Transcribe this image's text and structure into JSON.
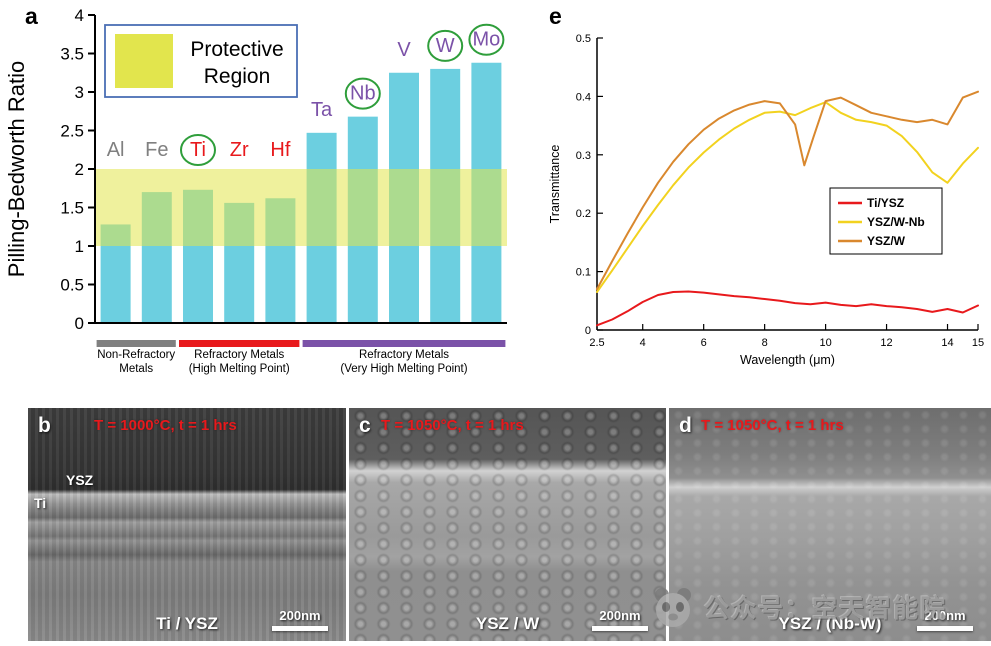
{
  "panel_a": {
    "tag": "a"
  },
  "panel_e": {
    "tag": "e"
  },
  "chart_data": [
    {
      "id": "pilling-bedworth-bar-chart",
      "type": "bar",
      "ylabel": "Pilling-Bedworth Ratio",
      "categories": [
        "Al",
        "Fe",
        "Ti",
        "Zr",
        "Hf",
        "Ta",
        "Nb",
        "V",
        "W",
        "Mo"
      ],
      "values": [
        1.28,
        1.7,
        1.73,
        1.56,
        1.62,
        2.47,
        2.68,
        3.25,
        3.3,
        3.38
      ],
      "ylim": [
        0,
        4
      ],
      "yticks": [
        0,
        0.5,
        1,
        1.5,
        2,
        2.5,
        3,
        3.5,
        4
      ],
      "bar_color": "#6ccfe0",
      "protective_band": {
        "from": 1,
        "to": 2,
        "color": "#e2e54d",
        "band_opacity": 0.55,
        "label": "Protective\nRegion",
        "legend_border_color": "#4a6fb5"
      },
      "category_colors": [
        "#808080",
        "#808080",
        "#e8191c",
        "#e8191c",
        "#e8191c",
        "#7b52a8",
        "#7b52a8",
        "#7b52a8",
        "#7b52a8",
        "#7b52a8"
      ],
      "circled_categories": [
        "Ti",
        "Nb",
        "W",
        "Mo"
      ],
      "circle_color": "#2f9e3b",
      "groups": [
        {
          "label": "Non-Refractory\nMetals",
          "color": "#808080",
          "from": 0,
          "to": 1
        },
        {
          "label": "Refractory Metals\n(High Melting Point)",
          "color": "#e8191c",
          "from": 2,
          "to": 4
        },
        {
          "label": "Refractory Metals\n(Very High Melting Point)",
          "color": "#7b52a8",
          "from": 5,
          "to": 9
        }
      ]
    },
    {
      "id": "transmittance-line-chart",
      "type": "line",
      "xlabel": "Wavelength (μm)",
      "ylabel": "Transmittance",
      "xlim": [
        2.5,
        15
      ],
      "ylim": [
        0,
        0.5
      ],
      "xticks": [
        2.5,
        4,
        6,
        8,
        10,
        12,
        14,
        15
      ],
      "yticks": [
        0,
        0.1,
        0.2,
        0.3,
        0.4,
        0.5
      ],
      "legend_position": "middle-right",
      "series": [
        {
          "name": "Ti/YSZ",
          "color": "#e8191c",
          "x": [
            2.5,
            3,
            3.5,
            4,
            4.5,
            5,
            5.5,
            6,
            6.5,
            7,
            7.5,
            8,
            8.5,
            9,
            9.5,
            10,
            10.5,
            11,
            11.5,
            12,
            12.5,
            13,
            13.5,
            14,
            14.5,
            15
          ],
          "y": [
            0.008,
            0.018,
            0.032,
            0.048,
            0.06,
            0.065,
            0.066,
            0.064,
            0.061,
            0.058,
            0.056,
            0.053,
            0.05,
            0.046,
            0.044,
            0.047,
            0.043,
            0.041,
            0.044,
            0.041,
            0.039,
            0.036,
            0.031,
            0.036,
            0.03,
            0.042
          ]
        },
        {
          "name": "YSZ/W-Nb",
          "color": "#f2d21f",
          "x": [
            2.5,
            3,
            3.5,
            4,
            4.5,
            5,
            5.5,
            6,
            6.5,
            7,
            7.5,
            8,
            8.5,
            9,
            9.5,
            10,
            10.5,
            11,
            11.5,
            12,
            12.5,
            13,
            13.5,
            14,
            14.5,
            15
          ],
          "y": [
            0.065,
            0.102,
            0.14,
            0.178,
            0.214,
            0.248,
            0.278,
            0.304,
            0.326,
            0.345,
            0.36,
            0.372,
            0.374,
            0.368,
            0.38,
            0.39,
            0.372,
            0.36,
            0.356,
            0.35,
            0.332,
            0.305,
            0.27,
            0.252,
            0.285,
            0.312
          ]
        },
        {
          "name": "YSZ/W",
          "color": "#d9882e",
          "x": [
            2.5,
            3,
            3.5,
            4,
            4.5,
            5,
            5.5,
            6,
            6.5,
            7,
            7.5,
            8,
            8.5,
            9,
            9.3,
            9.6,
            10,
            10.5,
            11,
            11.5,
            12,
            12.5,
            13,
            13.5,
            14,
            14.5,
            15
          ],
          "y": [
            0.07,
            0.118,
            0.165,
            0.21,
            0.252,
            0.288,
            0.318,
            0.343,
            0.362,
            0.376,
            0.386,
            0.392,
            0.388,
            0.352,
            0.282,
            0.33,
            0.392,
            0.398,
            0.385,
            0.372,
            0.366,
            0.36,
            0.356,
            0.36,
            0.352,
            0.398,
            0.408
          ]
        }
      ]
    }
  ],
  "sem_panels": [
    {
      "tag": "b",
      "condition": "T = 1000°C, t = 1 hrs",
      "material_label": "Ti / YSZ",
      "scale_label": "200nm",
      "layer_label_top": "YSZ",
      "layer_label_bottom": "Ti"
    },
    {
      "tag": "c",
      "condition": "T = 1050°C, t = 1 hrs",
      "material_label": "YSZ / W",
      "scale_label": "200nm"
    },
    {
      "tag": "d",
      "condition": "T = 1050°C, t = 1 hrs",
      "material_label": "YSZ / (Nb-W)",
      "scale_label": "200nm"
    }
  ],
  "watermark": {
    "text": "公众号：空天智能院"
  }
}
